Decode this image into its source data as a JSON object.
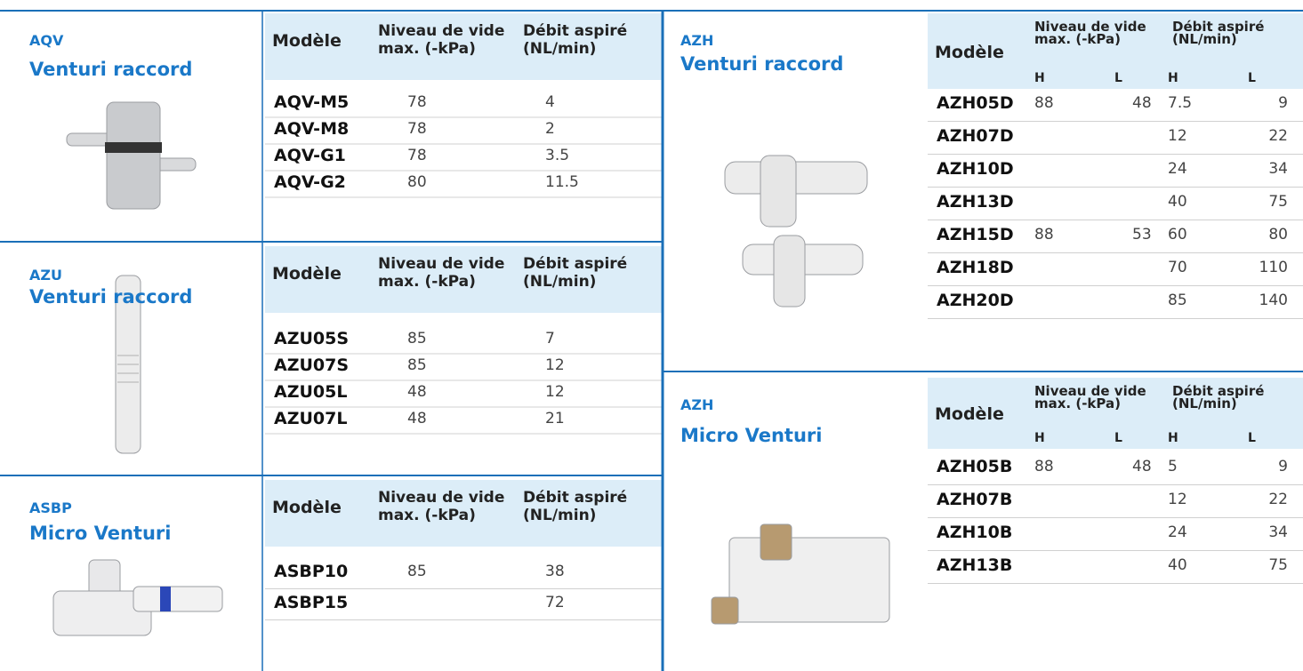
{
  "sections": [
    {
      "code": "AQV",
      "name": "Venturi raccord",
      "table": {
        "headers": {
          "model": "Modèle",
          "vacuum": "Niveau de vide max. (-kPa)",
          "flow": "Débit aspiré (NL/min)"
        },
        "rows": [
          {
            "model": "AQV-M5",
            "vacuum": 78,
            "flow": 4
          },
          {
            "model": "AQV-M8",
            "vacuum": 78,
            "flow": 2
          },
          {
            "model": "AQV-G1",
            "vacuum": 78,
            "flow": 3.5
          },
          {
            "model": "AQV-G2",
            "vacuum": 80,
            "flow": 11.5
          }
        ]
      }
    },
    {
      "code": "AZU",
      "name": "Venturi raccord",
      "table": {
        "headers": {
          "model": "Modèle",
          "vacuum": "Niveau de vide max. (-kPa)",
          "flow": "Débit aspiré (NL/min)"
        },
        "rows": [
          {
            "model": "AZU05S",
            "vacuum": 85,
            "flow": 7
          },
          {
            "model": "AZU07S",
            "vacuum": 85,
            "flow": 12
          },
          {
            "model": "AZU05L",
            "vacuum": 48,
            "flow": 12
          },
          {
            "model": "AZU07L",
            "vacuum": 48,
            "flow": 21
          }
        ]
      }
    },
    {
      "code": "ASBP",
      "name": "Micro Venturi",
      "table": {
        "headers": {
          "model": "Modèle",
          "vacuum": "Niveau de vide max. (-kPa)",
          "flow": "Débit aspiré (NL/min)"
        },
        "rows": [
          {
            "model": "ASBP10",
            "vacuum": 85,
            "flow": 38
          },
          {
            "model": "ASBP15",
            "flow": 72
          }
        ]
      }
    },
    {
      "code": "AZH",
      "name": "Venturi raccord",
      "table": {
        "headers": {
          "model": "Modèle",
          "vacuum": "Niveau de vide max. (-kPa)",
          "flow": "Débit aspiré (NL/min)",
          "sub": [
            "H",
            "L",
            "H",
            "L"
          ]
        },
        "rows": [
          {
            "model": "AZH05D",
            "vacuum": [
              88,
              48
            ],
            "flow": [
              7.5,
              9
            ]
          },
          {
            "model": "AZH07D",
            "flow": [
              12,
              22
            ]
          },
          {
            "model": "AZH10D",
            "flow": [
              24,
              34
            ]
          },
          {
            "model": "AZH13D",
            "flow": [
              40,
              75
            ]
          },
          {
            "model": "AZH15D",
            "vacuum": [
              88,
              53
            ],
            "flow": [
              60,
              80
            ]
          },
          {
            "model": "AZH18D",
            "flow": [
              70,
              110
            ]
          },
          {
            "model": "AZH20D",
            "flow": [
              85,
              140
            ]
          }
        ]
      }
    },
    {
      "code": "AZH",
      "name": "Micro Venturi",
      "table": {
        "headers": {
          "model": "Modèle",
          "vacuum": "Niveau de vide max. (-kPa)",
          "flow": "Débit aspiré (NL/min)",
          "sub": [
            "H",
            "L",
            "H",
            "L"
          ]
        },
        "rows": [
          {
            "model": "AZH05B",
            "vacuum": [
              88,
              48
            ],
            "flow": [
              5,
              9
            ]
          },
          {
            "model": "AZH07B",
            "flow": [
              12,
              22
            ]
          },
          {
            "model": "AZH10B",
            "flow": [
              24,
              34
            ]
          },
          {
            "model": "AZH13B",
            "flow": [
              40,
              75
            ]
          }
        ]
      }
    }
  ]
}
